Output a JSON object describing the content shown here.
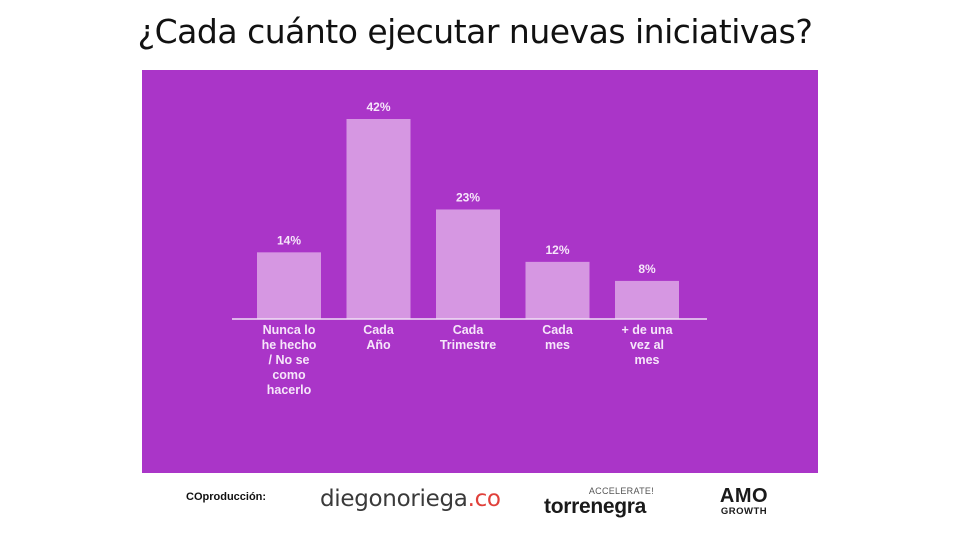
{
  "title": "¿Cada cuánto ejecutar nuevas iniciativas?",
  "colors": {
    "panel": "#aa35c8",
    "bar": "#d697e2",
    "text": "#f6e6fa"
  },
  "chart_data": {
    "type": "bar",
    "categories": [
      [
        "Nunca lo",
        "he hecho",
        "/ No se",
        "como",
        "hacerlo"
      ],
      [
        "Cada",
        "Año"
      ],
      [
        "Cada",
        "Trimestre"
      ],
      [
        "Cada",
        "mes"
      ],
      [
        "+ de una",
        "vez al",
        "mes"
      ]
    ],
    "values": [
      14,
      42,
      23,
      12,
      8
    ],
    "value_labels": [
      "14%",
      "42%",
      "23%",
      "12%",
      "8%"
    ],
    "unit": "%",
    "ylim": [
      0,
      42
    ],
    "title": "",
    "xlabel": "",
    "ylabel": ""
  },
  "footer": {
    "coproduccion_label": "COproducción:",
    "logos": {
      "diego_name": "diegonoriega",
      "diego_suffix": ".co",
      "torrenegra_tagline": "ACCELERATE!",
      "torrenegra_name": "torrenegra",
      "amo_name": "AMO",
      "amo_sub": "GROWTH"
    }
  }
}
